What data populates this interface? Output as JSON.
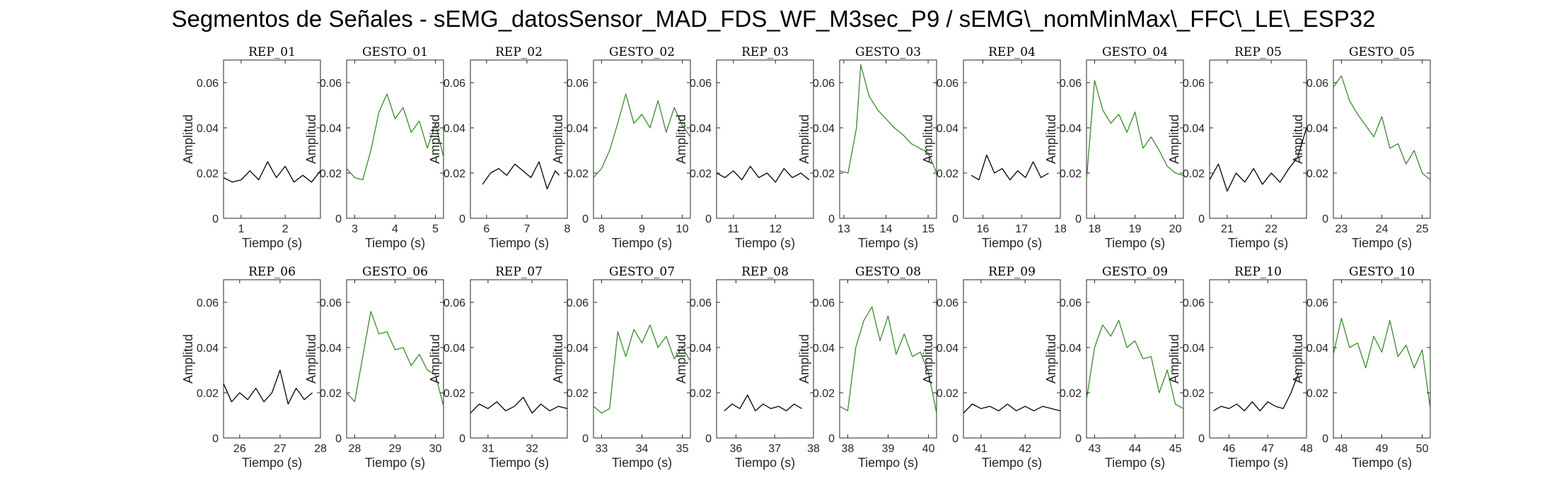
{
  "figure": {
    "title": "Segmentos de Señales - sEMG_datosSensor_MAD_FDS_WF_M3sec_P9 / sEMG\\_nomMinMax\\_FFC\\_LE\\_ESP32"
  },
  "colors": {
    "rep": "#000000",
    "gesto": "#3a8a2e",
    "axis": "#262626"
  },
  "chart_data": [
    {
      "type": "line",
      "title": "REP_01",
      "xlabel": "Tiempo (s)",
      "ylabel": "Amplitud",
      "xlim": [
        0.6,
        2.8
      ],
      "ylim": [
        0,
        0.07
      ],
      "xticks": [
        1,
        2
      ],
      "yticks": [
        0,
        0.02,
        0.04,
        0.06
      ],
      "color": "#000000",
      "series": [
        {
          "x": [
            0.6,
            0.8,
            1.0,
            1.2,
            1.4,
            1.6,
            1.8,
            2.0,
            2.2,
            2.4,
            2.6,
            2.8
          ],
          "y": [
            0.018,
            0.016,
            0.017,
            0.021,
            0.017,
            0.025,
            0.018,
            0.023,
            0.016,
            0.019,
            0.016,
            0.021
          ]
        }
      ]
    },
    {
      "type": "line",
      "title": "GESTO_01",
      "xlabel": "Tiempo (s)",
      "ylabel": "Amplitud",
      "xlim": [
        2.8,
        5.2
      ],
      "ylim": [
        0,
        0.07
      ],
      "xticks": [
        3,
        4,
        5
      ],
      "yticks": [
        0,
        0.02,
        0.04,
        0.06
      ],
      "color": "#3a8a2e",
      "series": [
        {
          "x": [
            2.8,
            3.0,
            3.2,
            3.4,
            3.6,
            3.8,
            4.0,
            4.2,
            4.4,
            4.6,
            4.8,
            5.0,
            5.2
          ],
          "y": [
            0.022,
            0.018,
            0.017,
            0.03,
            0.047,
            0.055,
            0.044,
            0.049,
            0.038,
            0.043,
            0.031,
            0.042,
            0.027
          ]
        }
      ]
    },
    {
      "type": "line",
      "title": "REP_02",
      "xlabel": "Tiempo (s)",
      "ylabel": "Amplitud",
      "xlim": [
        5.6,
        8
      ],
      "ylim": [
        0,
        0.07
      ],
      "xticks": [
        6,
        7,
        8
      ],
      "yticks": [
        0,
        0.02,
        0.04,
        0.06
      ],
      "color": "#000000",
      "series": [
        {
          "x": [
            5.9,
            6.1,
            6.3,
            6.5,
            6.7,
            6.9,
            7.1,
            7.3,
            7.5,
            7.7,
            7.8
          ],
          "y": [
            0.015,
            0.02,
            0.022,
            0.019,
            0.024,
            0.021,
            0.018,
            0.025,
            0.013,
            0.021,
            0.019
          ]
        }
      ]
    },
    {
      "type": "line",
      "title": "GESTO_02",
      "xlabel": "Tiempo (s)",
      "ylabel": "Amplitud",
      "xlim": [
        7.8,
        10.2
      ],
      "ylim": [
        0,
        0.07
      ],
      "xticks": [
        8,
        9,
        10
      ],
      "yticks": [
        0,
        0.02,
        0.04,
        0.06
      ],
      "color": "#3a8a2e",
      "series": [
        {
          "x": [
            7.8,
            8.0,
            8.2,
            8.4,
            8.6,
            8.8,
            9.0,
            9.2,
            9.4,
            9.6,
            9.8,
            10.0,
            10.2
          ],
          "y": [
            0.018,
            0.022,
            0.03,
            0.042,
            0.055,
            0.042,
            0.046,
            0.04,
            0.052,
            0.038,
            0.049,
            0.041,
            0.036
          ]
        }
      ]
    },
    {
      "type": "line",
      "title": "REP_03",
      "xlabel": "Tiempo (s)",
      "ylabel": "Amplitud",
      "xlim": [
        10.6,
        12.9
      ],
      "ylim": [
        0,
        0.07
      ],
      "xticks": [
        11,
        12
      ],
      "yticks": [
        0,
        0.02,
        0.04,
        0.06
      ],
      "color": "#000000",
      "series": [
        {
          "x": [
            10.6,
            10.8,
            11.0,
            11.2,
            11.4,
            11.6,
            11.8,
            12.0,
            12.2,
            12.4,
            12.6,
            12.8
          ],
          "y": [
            0.02,
            0.018,
            0.021,
            0.017,
            0.023,
            0.018,
            0.02,
            0.016,
            0.022,
            0.018,
            0.02,
            0.017
          ]
        }
      ]
    },
    {
      "type": "line",
      "title": "GESTO_03",
      "xlabel": "Tiempo (s)",
      "ylabel": "Amplitud",
      "xlim": [
        12.9,
        15.2
      ],
      "ylim": [
        0,
        0.07
      ],
      "xticks": [
        13,
        14,
        15
      ],
      "yticks": [
        0,
        0.02,
        0.04,
        0.06
      ],
      "color": "#3a8a2e",
      "series": [
        {
          "x": [
            12.9,
            13.1,
            13.3,
            13.4,
            13.6,
            13.8,
            14.0,
            14.2,
            14.4,
            14.6,
            14.8,
            15.0,
            15.2
          ],
          "y": [
            0.021,
            0.02,
            0.04,
            0.068,
            0.054,
            0.048,
            0.044,
            0.04,
            0.037,
            0.033,
            0.031,
            0.029,
            0.02
          ]
        }
      ]
    },
    {
      "type": "line",
      "title": "REP_04",
      "xlabel": "Tiempo (s)",
      "ylabel": "Amplitud",
      "xlim": [
        15.5,
        18
      ],
      "ylim": [
        0,
        0.07
      ],
      "xticks": [
        16,
        17,
        18
      ],
      "yticks": [
        0,
        0.02,
        0.04,
        0.06
      ],
      "color": "#000000",
      "series": [
        {
          "x": [
            15.7,
            15.9,
            16.1,
            16.3,
            16.5,
            16.7,
            16.9,
            17.1,
            17.3,
            17.5,
            17.7
          ],
          "y": [
            0.019,
            0.017,
            0.028,
            0.02,
            0.022,
            0.017,
            0.021,
            0.018,
            0.025,
            0.018,
            0.02
          ]
        }
      ]
    },
    {
      "type": "line",
      "title": "GESTO_04",
      "xlabel": "Tiempo (s)",
      "ylabel": "Amplitud",
      "xlim": [
        17.8,
        20.2
      ],
      "ylim": [
        0,
        0.07
      ],
      "xticks": [
        18,
        19,
        20
      ],
      "yticks": [
        0,
        0.02,
        0.04,
        0.06
      ],
      "color": "#3a8a2e",
      "series": [
        {
          "x": [
            17.8,
            18.0,
            18.2,
            18.4,
            18.6,
            18.8,
            19.0,
            19.2,
            19.4,
            19.6,
            19.8,
            20.0,
            20.2
          ],
          "y": [
            0.017,
            0.061,
            0.048,
            0.042,
            0.046,
            0.038,
            0.047,
            0.031,
            0.036,
            0.03,
            0.023,
            0.02,
            0.019
          ]
        }
      ]
    },
    {
      "type": "line",
      "title": "REP_05",
      "xlabel": "Tiempo (s)",
      "ylabel": "Amplitud",
      "xlim": [
        20.6,
        22.8
      ],
      "ylim": [
        0,
        0.07
      ],
      "xticks": [
        21,
        22
      ],
      "yticks": [
        0,
        0.02,
        0.04,
        0.06
      ],
      "color": "#000000",
      "series": [
        {
          "x": [
            20.6,
            20.8,
            21.0,
            21.2,
            21.4,
            21.6,
            21.8,
            22.0,
            22.2,
            22.4,
            22.6,
            22.8
          ],
          "y": [
            0.017,
            0.024,
            0.012,
            0.02,
            0.016,
            0.022,
            0.015,
            0.02,
            0.016,
            0.022,
            0.027,
            0.04
          ]
        }
      ]
    },
    {
      "type": "line",
      "title": "GESTO_05",
      "xlabel": "Tiempo (s)",
      "ylabel": "Amplitud",
      "xlim": [
        22.8,
        25.2
      ],
      "ylim": [
        0,
        0.07
      ],
      "xticks": [
        23,
        24,
        25
      ],
      "yticks": [
        0,
        0.02,
        0.04,
        0.06
      ],
      "color": "#3a8a2e",
      "series": [
        {
          "x": [
            22.8,
            23.0,
            23.2,
            23.4,
            23.6,
            23.8,
            24.0,
            24.2,
            24.4,
            24.6,
            24.8,
            25.0,
            25.2
          ],
          "y": [
            0.058,
            0.063,
            0.052,
            0.046,
            0.041,
            0.036,
            0.045,
            0.031,
            0.033,
            0.024,
            0.03,
            0.02,
            0.017
          ]
        }
      ]
    },
    {
      "type": "line",
      "title": "REP_06",
      "xlabel": "Tiempo (s)",
      "ylabel": "Amplitud",
      "xlim": [
        25.6,
        28
      ],
      "ylim": [
        0,
        0.07
      ],
      "xticks": [
        26,
        27,
        28
      ],
      "yticks": [
        0,
        0.02,
        0.04,
        0.06
      ],
      "color": "#000000",
      "series": [
        {
          "x": [
            25.6,
            25.8,
            26.0,
            26.2,
            26.4,
            26.6,
            26.8,
            27.0,
            27.2,
            27.4,
            27.6,
            27.8
          ],
          "y": [
            0.024,
            0.016,
            0.02,
            0.017,
            0.022,
            0.016,
            0.02,
            0.03,
            0.015,
            0.022,
            0.017,
            0.02
          ]
        }
      ]
    },
    {
      "type": "line",
      "title": "GESTO_06",
      "xlabel": "Tiempo (s)",
      "ylabel": "Amplitud",
      "xlim": [
        27.8,
        30.2
      ],
      "ylim": [
        0,
        0.07
      ],
      "xticks": [
        28,
        29,
        30
      ],
      "yticks": [
        0,
        0.02,
        0.04,
        0.06
      ],
      "color": "#3a8a2e",
      "series": [
        {
          "x": [
            27.8,
            28.0,
            28.2,
            28.4,
            28.6,
            28.8,
            29.0,
            29.2,
            29.4,
            29.6,
            29.8,
            30.0,
            30.2
          ],
          "y": [
            0.02,
            0.016,
            0.036,
            0.056,
            0.046,
            0.047,
            0.039,
            0.04,
            0.032,
            0.037,
            0.03,
            0.028,
            0.014
          ]
        }
      ]
    },
    {
      "type": "line",
      "title": "REP_07",
      "xlabel": "Tiempo (s)",
      "ylabel": "Amplitud",
      "xlim": [
        30.6,
        32.8
      ],
      "ylim": [
        0,
        0.07
      ],
      "xticks": [
        31,
        32
      ],
      "yticks": [
        0,
        0.02,
        0.04,
        0.06
      ],
      "color": "#000000",
      "series": [
        {
          "x": [
            30.6,
            30.8,
            31.0,
            31.2,
            31.4,
            31.6,
            31.8,
            32.0,
            32.2,
            32.4,
            32.6,
            32.8
          ],
          "y": [
            0.011,
            0.015,
            0.013,
            0.016,
            0.012,
            0.014,
            0.018,
            0.011,
            0.015,
            0.012,
            0.014,
            0.013
          ]
        }
      ]
    },
    {
      "type": "line",
      "title": "GESTO_07",
      "xlabel": "Tiempo (s)",
      "ylabel": "Amplitud",
      "xlim": [
        32.8,
        35.2
      ],
      "ylim": [
        0,
        0.07
      ],
      "xticks": [
        33,
        34,
        35
      ],
      "yticks": [
        0,
        0.02,
        0.04,
        0.06
      ],
      "color": "#3a8a2e",
      "series": [
        {
          "x": [
            32.8,
            33.0,
            33.2,
            33.4,
            33.6,
            33.8,
            34.0,
            34.2,
            34.4,
            34.6,
            34.8,
            35.0,
            35.2
          ],
          "y": [
            0.014,
            0.011,
            0.013,
            0.047,
            0.036,
            0.048,
            0.042,
            0.05,
            0.04,
            0.045,
            0.035,
            0.04,
            0.034
          ]
        }
      ]
    },
    {
      "type": "line",
      "title": "REP_08",
      "xlabel": "Tiempo (s)",
      "ylabel": "Amplitud",
      "xlim": [
        35.5,
        38
      ],
      "ylim": [
        0,
        0.07
      ],
      "xticks": [
        36,
        37,
        38
      ],
      "yticks": [
        0,
        0.02,
        0.04,
        0.06
      ],
      "color": "#000000",
      "series": [
        {
          "x": [
            35.7,
            35.9,
            36.1,
            36.3,
            36.5,
            36.7,
            36.9,
            37.1,
            37.3,
            37.5,
            37.7
          ],
          "y": [
            0.012,
            0.015,
            0.013,
            0.019,
            0.012,
            0.015,
            0.013,
            0.014,
            0.012,
            0.015,
            0.013
          ]
        }
      ]
    },
    {
      "type": "line",
      "title": "GESTO_08",
      "xlabel": "Tiempo (s)",
      "ylabel": "Amplitud",
      "xlim": [
        37.8,
        40.2
      ],
      "ylim": [
        0,
        0.07
      ],
      "xticks": [
        38,
        39,
        40
      ],
      "yticks": [
        0,
        0.02,
        0.04,
        0.06
      ],
      "color": "#3a8a2e",
      "series": [
        {
          "x": [
            37.8,
            38.0,
            38.2,
            38.4,
            38.6,
            38.8,
            39.0,
            39.2,
            39.4,
            39.6,
            39.8,
            40.0,
            40.2
          ],
          "y": [
            0.014,
            0.012,
            0.04,
            0.052,
            0.058,
            0.043,
            0.054,
            0.037,
            0.046,
            0.036,
            0.038,
            0.029,
            0.011
          ]
        }
      ]
    },
    {
      "type": "line",
      "title": "REP_09",
      "xlabel": "Tiempo (s)",
      "ylabel": "Amplitud",
      "xlim": [
        40.6,
        42.8
      ],
      "ylim": [
        0,
        0.07
      ],
      "xticks": [
        41,
        42
      ],
      "yticks": [
        0,
        0.02,
        0.04,
        0.06
      ],
      "color": "#000000",
      "series": [
        {
          "x": [
            40.6,
            40.8,
            41.0,
            41.2,
            41.4,
            41.6,
            41.8,
            42.0,
            42.2,
            42.4,
            42.6,
            42.8
          ],
          "y": [
            0.011,
            0.015,
            0.013,
            0.014,
            0.012,
            0.015,
            0.012,
            0.014,
            0.012,
            0.014,
            0.013,
            0.012
          ]
        }
      ]
    },
    {
      "type": "line",
      "title": "GESTO_09",
      "xlabel": "Tiempo (s)",
      "ylabel": "Amplitud",
      "xlim": [
        42.8,
        45.2
      ],
      "ylim": [
        0,
        0.07
      ],
      "xticks": [
        43,
        44,
        45
      ],
      "yticks": [
        0,
        0.02,
        0.04,
        0.06
      ],
      "color": "#3a8a2e",
      "series": [
        {
          "x": [
            42.8,
            43.0,
            43.2,
            43.4,
            43.6,
            43.8,
            44.0,
            44.2,
            44.4,
            44.6,
            44.8,
            45.0,
            45.2
          ],
          "y": [
            0.017,
            0.04,
            0.05,
            0.045,
            0.052,
            0.04,
            0.043,
            0.035,
            0.036,
            0.02,
            0.03,
            0.015,
            0.013
          ]
        }
      ]
    },
    {
      "type": "line",
      "title": "REP_10",
      "xlabel": "Tiempo (s)",
      "ylabel": "Amplitud",
      "xlim": [
        45.5,
        48
      ],
      "ylim": [
        0,
        0.07
      ],
      "xticks": [
        46,
        47,
        48
      ],
      "yticks": [
        0,
        0.02,
        0.04,
        0.06
      ],
      "color": "#000000",
      "series": [
        {
          "x": [
            45.6,
            45.8,
            46.0,
            46.2,
            46.4,
            46.6,
            46.8,
            47.0,
            47.2,
            47.4,
            47.6,
            47.8
          ],
          "y": [
            0.012,
            0.014,
            0.013,
            0.015,
            0.012,
            0.016,
            0.012,
            0.016,
            0.014,
            0.013,
            0.02,
            0.029
          ]
        }
      ]
    },
    {
      "type": "line",
      "title": "GESTO_10",
      "xlabel": "Tiempo (s)",
      "ylabel": "Amplitud",
      "xlim": [
        47.8,
        50.2
      ],
      "ylim": [
        0,
        0.07
      ],
      "xticks": [
        48,
        49,
        50
      ],
      "yticks": [
        0,
        0.02,
        0.04,
        0.06
      ],
      "color": "#3a8a2e",
      "series": [
        {
          "x": [
            47.8,
            48.0,
            48.2,
            48.4,
            48.6,
            48.8,
            49.0,
            49.2,
            49.4,
            49.6,
            49.8,
            50.0,
            50.2
          ],
          "y": [
            0.037,
            0.053,
            0.04,
            0.042,
            0.031,
            0.045,
            0.038,
            0.052,
            0.036,
            0.041,
            0.031,
            0.039,
            0.013
          ]
        }
      ]
    }
  ]
}
